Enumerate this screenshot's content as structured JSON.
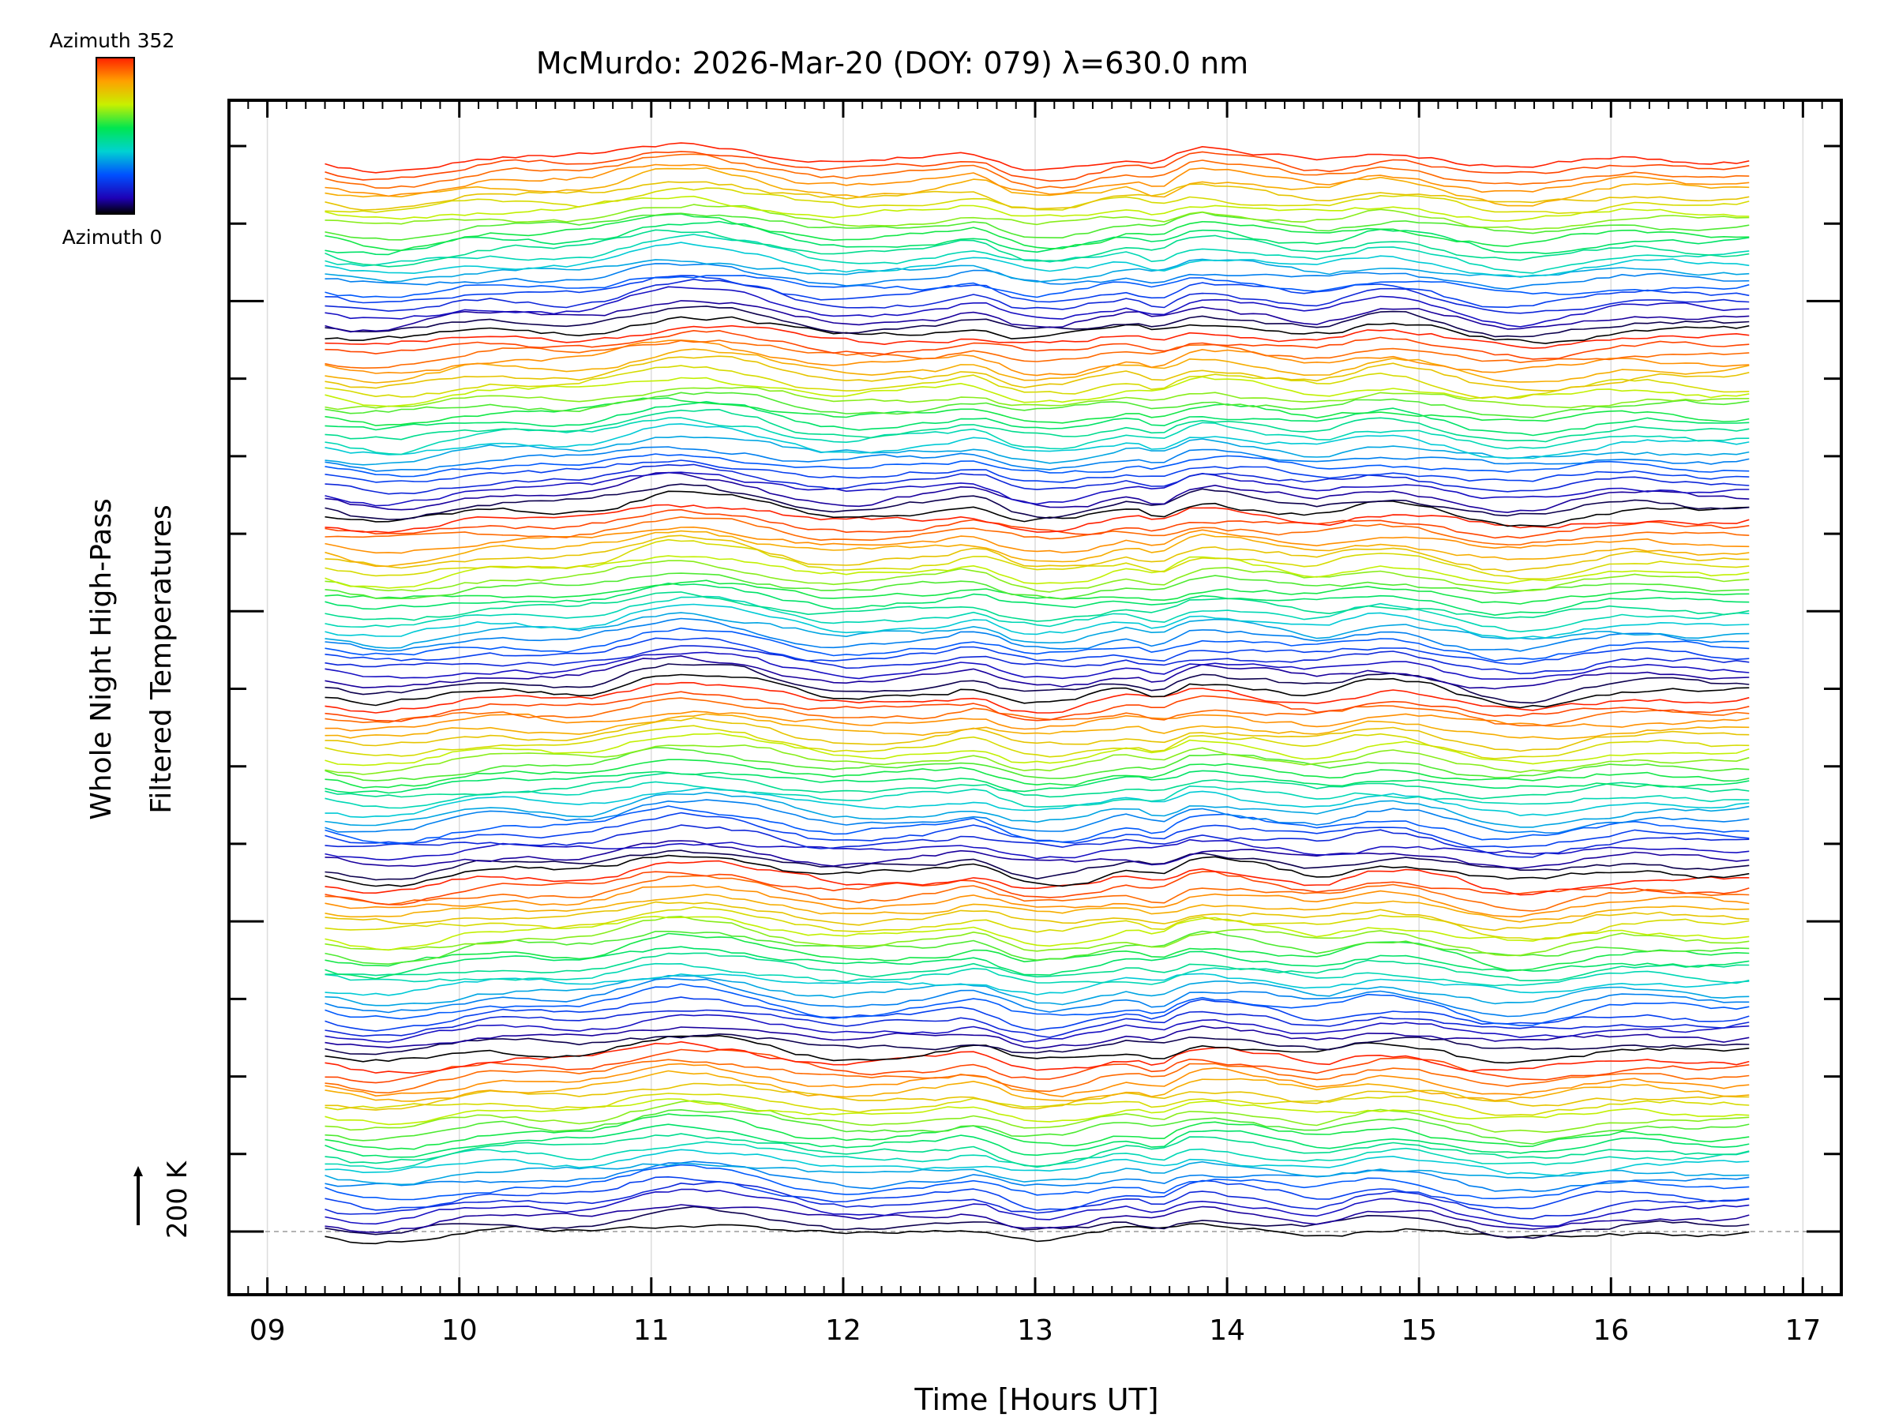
{
  "chart_data": {
    "type": "line",
    "title": "McMurdo: 2026-Mar-20 (DOY: 079) λ=630.0 nm",
    "xlabel": "Time [Hours UT]",
    "ylabel_line1": "Whole Night High-Pass",
    "ylabel_line2": "Filtered Temperatures",
    "scale_label": "200 K",
    "colorbar": {
      "label_top": "Azimuth 352",
      "label_bottom": "Azimuth 0",
      "min": 0,
      "max": 352
    },
    "xlim": [
      8.8,
      17.2
    ],
    "x_ticks": [
      9,
      10,
      11,
      12,
      13,
      14,
      15,
      16,
      17
    ],
    "x_tick_labels": [
      "09",
      "10",
      "11",
      "12",
      "13",
      "14",
      "15",
      "16",
      "17"
    ],
    "time_range": [
      9.3,
      16.72
    ],
    "trace_count": 144,
    "group_size": 24,
    "gridlines": "vertical"
  }
}
